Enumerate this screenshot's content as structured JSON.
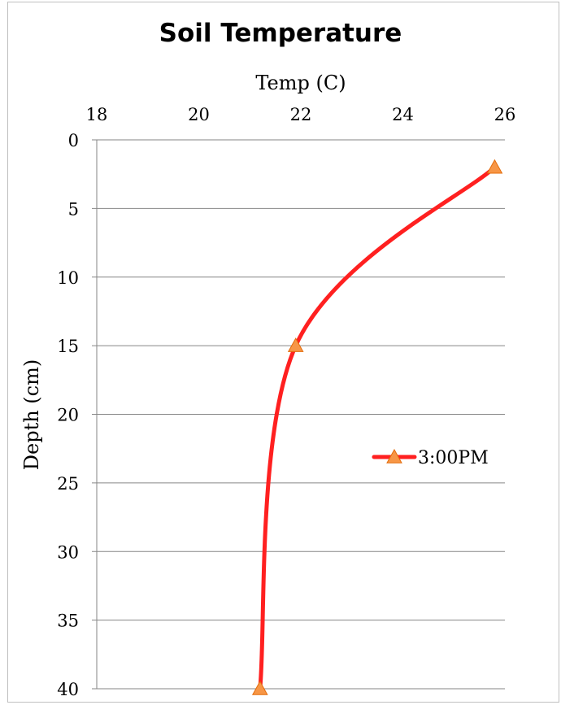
{
  "chart_data": {
    "type": "line",
    "title": "Soil Temperature",
    "xlabel": "Temp (C)",
    "ylabel": "Depth (cm)",
    "x_axis_position": "top",
    "y_axis_reversed": true,
    "xlim": [
      18,
      26
    ],
    "ylim": [
      0,
      40
    ],
    "x_ticks": [
      "18",
      "20",
      "22",
      "24",
      "26"
    ],
    "y_ticks": [
      "0",
      "5",
      "10",
      "15",
      "20",
      "25",
      "30",
      "35",
      "40"
    ],
    "grid": "horizontal",
    "legend_position": "right",
    "series": [
      {
        "name": "3:00PM",
        "color": "#ff2020",
        "marker": "triangle",
        "marker_color": "#f79646",
        "smooth": true,
        "points": [
          {
            "x": 25.8,
            "y": 2
          },
          {
            "x": 21.9,
            "y": 15
          },
          {
            "x": 21.2,
            "y": 40
          }
        ]
      }
    ]
  }
}
